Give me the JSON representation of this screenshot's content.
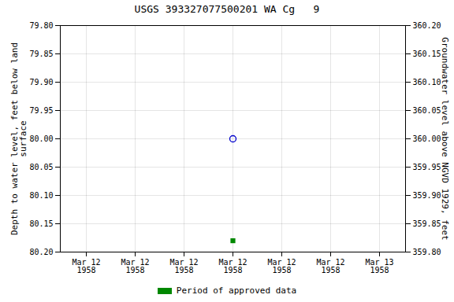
{
  "chart_data": {
    "type": "scatter",
    "title": "USGS 393327077500201 WA Cg   9",
    "ylabel": "Depth to water level, feet below land\nsurface",
    "y2label": "Groundwater level above NGVD 1929, feet",
    "categories": [
      "Mar 12\n1958",
      "Mar 12\n1958",
      "Mar 12\n1958",
      "Mar 12\n1958",
      "Mar 12\n1958",
      "Mar 12\n1958",
      "Mar 13\n1958"
    ],
    "series": [
      {
        "color": "#0000cc",
        "marker": "open_circle",
        "values": [
          null,
          null,
          null,
          80.0,
          null,
          null,
          null
        ]
      },
      {
        "name": "Period of approved data",
        "color": "#008800",
        "marker": "square",
        "values": [
          null,
          null,
          null,
          80.18,
          null,
          null,
          null
        ]
      }
    ],
    "ylim": [
      80.2,
      79.8
    ],
    "yticks": [
      {
        "value": 79.8,
        "label": "79.80"
      },
      {
        "value": 79.85,
        "label": "79.85"
      },
      {
        "value": 79.9,
        "label": "79.90"
      },
      {
        "value": 79.95,
        "label": "79.95"
      },
      {
        "value": 80.0,
        "label": "80.00"
      },
      {
        "value": 80.05,
        "label": "80.05"
      },
      {
        "value": 80.1,
        "label": "80.10"
      },
      {
        "value": 80.15,
        "label": "80.15"
      },
      {
        "value": 80.2,
        "label": "80.20"
      }
    ],
    "y2lim": [
      359.8,
      360.2
    ],
    "y2ticks": [
      {
        "value": 360.2,
        "label": "360.20"
      },
      {
        "value": 360.15,
        "label": "360.15"
      },
      {
        "value": 360.1,
        "label": "360.10"
      },
      {
        "value": 360.05,
        "label": "360.05"
      },
      {
        "value": 360.0,
        "label": "360.00"
      },
      {
        "value": 359.95,
        "label": "359.95"
      },
      {
        "value": 359.9,
        "label": "359.90"
      },
      {
        "value": 359.85,
        "label": "359.85"
      },
      {
        "value": 359.8,
        "label": "359.80"
      }
    ],
    "grid": true,
    "legend": "bottom"
  }
}
